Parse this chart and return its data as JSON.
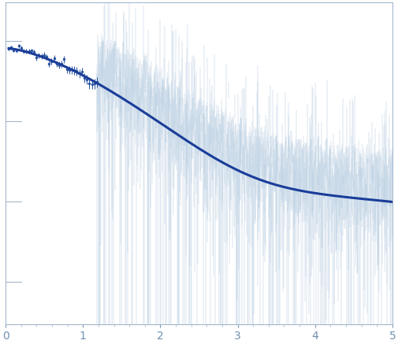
{
  "title": "",
  "xlabel": "",
  "ylabel": "",
  "xlim": [
    0,
    5
  ],
  "dot_color": "#2a52a0",
  "line_color": "#1a3d99",
  "errorbar_color_dense": "#aac4dd",
  "errorbar_color_dot": "#2a52a0",
  "axis_color": "#9ab0c8",
  "tick_label_color": "#7090b0",
  "background": "#ffffff",
  "dot_q_start": 0.04,
  "dot_q_end": 1.18,
  "dense_q_start": 1.18,
  "dense_q_end": 5.0,
  "n_dots": 36,
  "n_dense": 800,
  "ylim": [
    0.003,
    30.0
  ]
}
